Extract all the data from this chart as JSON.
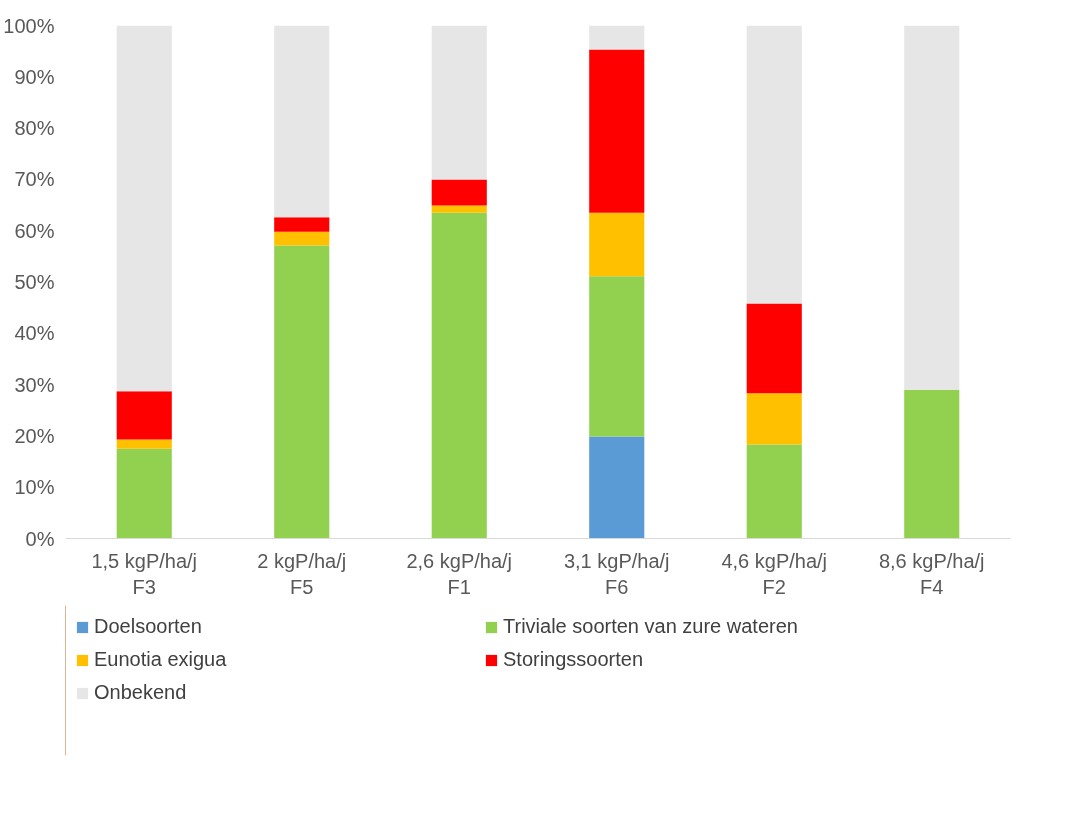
{
  "chart_data": {
    "type": "bar",
    "stacked": true,
    "categories": [
      "1,5 kgP/ha/j\nF3",
      "2 kgP/ha/j\nF5",
      "2,6 kgP/ha/j\nF1",
      "3,1 kgP/ha/j\nF6",
      "4,6 kgP/ha/j\nF2",
      "8,6 kgP/ha/j\nF4"
    ],
    "series": [
      {
        "name": "Doelsoorten",
        "color": "#5b9bd5",
        "values": [
          0,
          0,
          0,
          19.9,
          0,
          0
        ]
      },
      {
        "name": "Triviale soorten van zure wateren",
        "color": "#92d050",
        "values": [
          17.5,
          57.1,
          63.5,
          31.2,
          18.3,
          29.0
        ]
      },
      {
        "name": "Eunotia exigua",
        "color": "#ffc000",
        "values": [
          1.8,
          2.7,
          1.4,
          12.4,
          10.0,
          0
        ]
      },
      {
        "name": "Storingssoorten",
        "color": "#ff0000",
        "values": [
          9.4,
          2.8,
          5.1,
          31.8,
          17.5,
          0
        ]
      },
      {
        "name": "Onbekend",
        "color": "#e7e6e6",
        "values": [
          71.3,
          37.4,
          30.0,
          4.7,
          54.2,
          71.0
        ]
      }
    ],
    "ylim": [
      0,
      100
    ],
    "yticks": [
      {
        "value": 0,
        "label": "0%"
      },
      {
        "value": 10,
        "label": "10%"
      },
      {
        "value": 20,
        "label": "20%"
      },
      {
        "value": 30,
        "label": "30%"
      },
      {
        "value": 40,
        "label": "40%"
      },
      {
        "value": 50,
        "label": "50%"
      },
      {
        "value": 60,
        "label": "60%"
      },
      {
        "value": 70,
        "label": "70%"
      },
      {
        "value": 80,
        "label": "80%"
      },
      {
        "value": 90,
        "label": "90%"
      },
      {
        "value": 100,
        "label": "100%"
      }
    ],
    "grid": false,
    "legend": "bottom"
  }
}
